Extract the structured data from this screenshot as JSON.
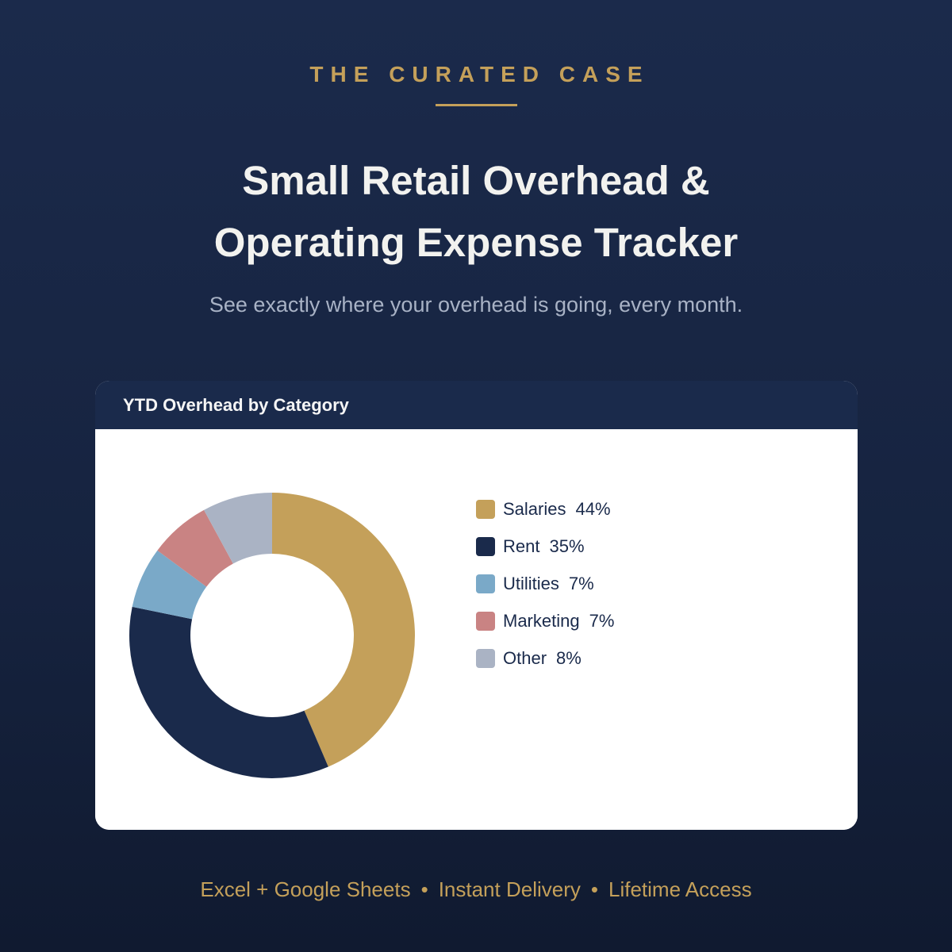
{
  "theme": {
    "accent": "#c4a05a",
    "navy": "#1a2a4b",
    "title_text": "#f2f2ef",
    "muted_text": "#a8b2c5"
  },
  "brand": {
    "name": "THE CURATED CASE"
  },
  "hero": {
    "title": "Small Retail Overhead & Operating Expense Tracker",
    "subtitle": "See exactly where your overhead is going, every month."
  },
  "chart_data": {
    "type": "pie",
    "donut": true,
    "title": "YTD Overhead by Category",
    "categories": [
      "Salaries",
      "Rent",
      "Utilities",
      "Marketing",
      "Other"
    ],
    "values": [
      44,
      35,
      7,
      7,
      8
    ],
    "unit": "%",
    "colors": [
      "#c4a05a",
      "#1a2a4b",
      "#7aa9c8",
      "#c98383",
      "#aab3c4"
    ],
    "legend": "right"
  },
  "footer": {
    "items": [
      "Excel + Google Sheets",
      "Instant Delivery",
      "Lifetime Access"
    ],
    "separator": "•"
  }
}
